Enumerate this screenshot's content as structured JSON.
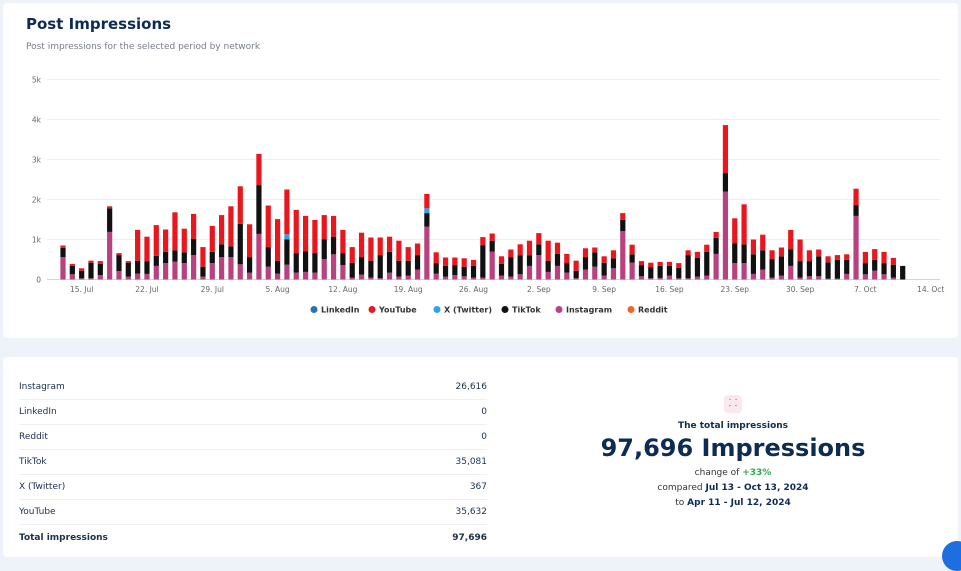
{
  "header": {
    "title": "Post Impressions",
    "subtitle": "Post impressions for the selected period by network"
  },
  "chart_data": {
    "type": "bar",
    "stacked": true,
    "ylim": [
      0,
      5000
    ],
    "y_ticks": [
      "0",
      "1k",
      "2k",
      "3k",
      "4k",
      "5k"
    ],
    "x_ticks": [
      "15. Jul",
      "22. Jul",
      "29. Jul",
      "5. Aug",
      "12. Aug",
      "19. Aug",
      "26. Aug",
      "2. Sep",
      "9. Sep",
      "16. Sep",
      "23. Sep",
      "30. Sep",
      "7. Oct",
      "14. Oct"
    ],
    "x_range": [
      "2024-07-13",
      "2024-10-11"
    ],
    "grid": true,
    "legend_position": "bottom",
    "series": [
      {
        "name": "LinkedIn",
        "color": "#2f6db5",
        "values": []
      },
      {
        "name": "YouTube",
        "color": "#e8161d",
        "values": [
          60,
          50,
          60,
          50,
          70,
          50,
          50,
          40,
          770,
          620,
          770,
          560,
          950,
          590,
          620,
          490,
          650,
          730,
          1000,
          940,
          820,
          780,
          1040,
          1040,
          1120,
          1080,
          890,
          830,
          610,
          520,
          580,
          390,
          610,
          580,
          440,
          380,
          500,
          340,
          290,
          360,
          270,
          210,
          190,
          210,
          150,
          210,
          180,
          190,
          190,
          280,
          370,
          280,
          500,
          280,
          230,
          250,
          220,
          120,
          160,
          200,
          170,
          240,
          100,
          110,
          100,
          100,
          120,
          120,
          150,
          180,
          150,
          1200,
          630,
          1000,
          370,
          390,
          220,
          220,
          490,
          540,
          270,
          170,
          150,
          120,
          140,
          410,
          280,
          270,
          280,
          170,
          0
        ]
      },
      {
        "name": "X (Twitter)",
        "color": "#2fa3e6",
        "values": [
          0,
          0,
          0,
          0,
          0,
          0,
          0,
          0,
          0,
          0,
          0,
          0,
          0,
          0,
          0,
          0,
          0,
          0,
          0,
          0,
          0,
          0,
          0,
          0,
          130,
          0,
          0,
          0,
          0,
          0,
          0,
          0,
          0,
          0,
          0,
          0,
          0,
          0,
          0,
          120,
          0,
          0,
          0,
          0,
          0,
          0,
          0,
          0,
          0,
          0,
          0,
          0,
          0,
          0,
          0,
          0,
          0,
          0,
          0,
          0,
          0,
          0,
          0,
          0,
          0,
          0,
          0,
          0,
          0,
          0,
          0,
          0,
          0,
          0,
          0,
          0,
          0,
          0,
          0,
          0,
          0,
          0,
          0,
          0,
          0,
          0,
          0,
          0,
          0,
          0,
          0
        ]
      },
      {
        "name": "TikTok",
        "color": "#111111",
        "values": [
          230,
          210,
          190,
          390,
          280,
          590,
          400,
          350,
          320,
          310,
          250,
          280,
          280,
          270,
          410,
          250,
          280,
          320,
          270,
          1010,
          390,
          1220,
          490,
          320,
          630,
          490,
          510,
          490,
          490,
          440,
          300,
          370,
          440,
          420,
          580,
          520,
          400,
          370,
          360,
          340,
          260,
          270,
          250,
          240,
          290,
          800,
          270,
          290,
          490,
          470,
          260,
          270,
          280,
          300,
          240,
          190,
          310,
          360,
          320,
          250,
          280,
          210,
          280,
          280,
          300,
          240,
          260,
          580,
          470,
          590,
          400,
          460,
          490,
          470,
          490,
          480,
          460,
          480,
          410,
          410,
          380,
          500,
          410,
          470,
          350,
          270,
          280,
          270,
          280,
          320,
          340
        ]
      },
      {
        "name": "Instagram",
        "color": "#b8417f",
        "values": [
          560,
          130,
          30,
          30,
          110,
          1190,
          210,
          70,
          150,
          140,
          340,
          410,
          450,
          410,
          610,
          70,
          410,
          560,
          560,
          380,
          170,
          1140,
          320,
          150,
          370,
          170,
          190,
          170,
          510,
          630,
          360,
          50,
          120,
          50,
          30,
          170,
          70,
          100,
          250,
          1320,
          150,
          70,
          110,
          80,
          50,
          50,
          700,
          100,
          70,
          130,
          340,
          610,
          190,
          340,
          170,
          30,
          250,
          320,
          100,
          280,
          1210,
          420,
          80,
          30,
          40,
          100,
          30,
          30,
          70,
          100,
          640,
          2200,
          410,
          410,
          140,
          250,
          50,
          100,
          340,
          50,
          80,
          80,
          20,
          20,
          140,
          1590,
          130,
          220,
          130,
          50,
          0
        ]
      },
      {
        "name": "Reddit",
        "color": "#f26522",
        "values": []
      }
    ]
  },
  "table": {
    "rows": [
      {
        "label": "Instagram",
        "value": "26,616"
      },
      {
        "label": "LinkedIn",
        "value": "0"
      },
      {
        "label": "Reddit",
        "value": "0"
      },
      {
        "label": "TikTok",
        "value": "35,081"
      },
      {
        "label": "X (Twitter)",
        "value": "367"
      },
      {
        "label": "YouTube",
        "value": "35,632"
      }
    ],
    "total": {
      "label": "Total impressions",
      "value": "97,696"
    }
  },
  "summary": {
    "icon": "chart-nodes-icon",
    "label": "The total impressions",
    "headline": "97,696 Impressions",
    "change_prefix": "change of",
    "change": "+33%",
    "compared_prefix": "compared",
    "compared_range": "Jul 13 - Oct 13, 2024",
    "to_prefix": "to",
    "to_range": "Apr 11 - Jul 12, 2024"
  }
}
